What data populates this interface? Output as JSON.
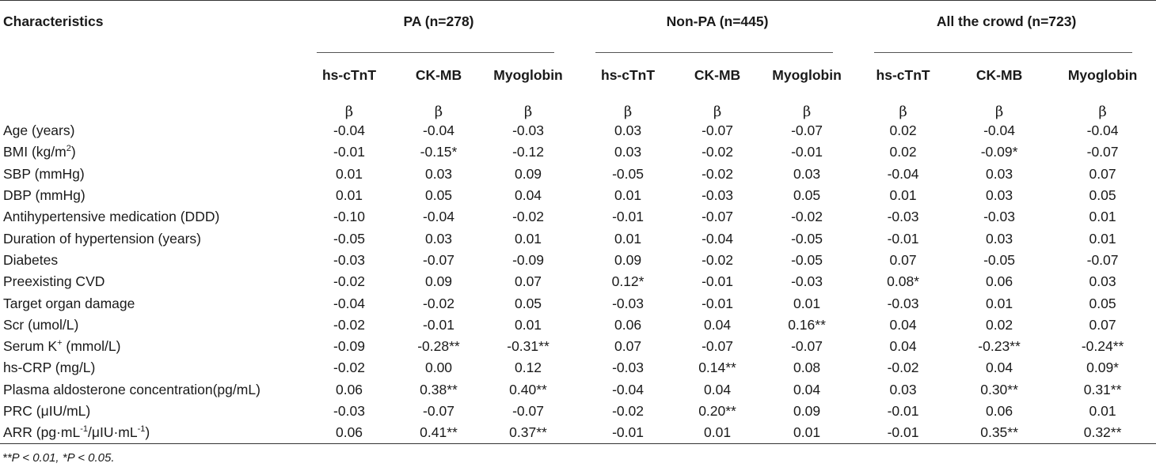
{
  "header": {
    "characteristics_label": "Characteristics",
    "groups": [
      "PA (n=278)",
      "Non-PA (n=445)",
      "All the crowd (n=723)"
    ],
    "subcolumns": [
      "hs-cTnT",
      "CK-MB",
      "Myoglobin",
      "hs-cTnT",
      "CK-MB",
      "Myoglobin",
      "hs-cTnT",
      "CK-MB",
      "Myoglobin"
    ],
    "beta_symbol": "β"
  },
  "rows": [
    {
      "label": "Age (years)",
      "values": [
        "-0.04",
        "-0.04",
        "-0.03",
        "0.03",
        "-0.07",
        "-0.07",
        "0.02",
        "-0.04",
        "-0.04"
      ]
    },
    {
      "label_pre": "BMI (kg/m",
      "label_sup": "2",
      "label_post": ")",
      "values": [
        "-0.01",
        "-0.15*",
        "-0.12",
        "0.03",
        "-0.02",
        "-0.01",
        "0.02",
        "-0.09*",
        "-0.07"
      ]
    },
    {
      "label": "SBP (mmHg)",
      "values": [
        "0.01",
        "0.03",
        "0.09",
        "-0.05",
        "-0.02",
        "0.03",
        "-0.04",
        "0.03",
        "0.07"
      ]
    },
    {
      "label": "DBP (mmHg)",
      "values": [
        "0.01",
        "0.05",
        "0.04",
        "0.01",
        "-0.03",
        "0.05",
        "0.01",
        "0.03",
        "0.05"
      ]
    },
    {
      "label": "Antihypertensive medication (DDD)",
      "values": [
        "-0.10",
        "-0.04",
        "-0.02",
        "-0.01",
        "-0.07",
        "-0.02",
        "-0.03",
        "-0.03",
        "0.01"
      ]
    },
    {
      "label": "Duration of hypertension (years)",
      "values": [
        "-0.05",
        "0.03",
        "0.01",
        "0.01",
        "-0.04",
        "-0.05",
        "-0.01",
        "0.03",
        "0.01"
      ]
    },
    {
      "label": "Diabetes",
      "values": [
        "-0.03",
        "-0.07",
        "-0.09",
        "0.09",
        "-0.02",
        "-0.05",
        "0.07",
        "-0.05",
        "-0.07"
      ]
    },
    {
      "label": "Preexisting CVD",
      "values": [
        "-0.02",
        "0.09",
        "0.07",
        "0.12*",
        "-0.01",
        "-0.03",
        "0.08*",
        "0.06",
        "0.03"
      ]
    },
    {
      "label": "Target organ damage",
      "values": [
        "-0.04",
        "-0.02",
        "0.05",
        "-0.03",
        "-0.01",
        "0.01",
        "-0.03",
        "0.01",
        "0.05"
      ]
    },
    {
      "label": "Scr (umol/L)",
      "values": [
        "-0.02",
        "-0.01",
        "0.01",
        "0.06",
        "0.04",
        "0.16**",
        "0.04",
        "0.02",
        "0.07"
      ]
    },
    {
      "label_pre": "Serum K",
      "label_sup": "+",
      "label_post": " (mmol/L)",
      "values": [
        "-0.09",
        "-0.28**",
        "-0.31**",
        "0.07",
        "-0.07",
        "-0.07",
        "0.04",
        "-0.23**",
        "-0.24**"
      ]
    },
    {
      "label": "hs-CRP (mg/L)",
      "values": [
        "-0.02",
        "0.00",
        "0.12",
        "-0.03",
        "0.14**",
        "0.08",
        "-0.02",
        "0.04",
        "0.09*"
      ]
    },
    {
      "label": "Plasma aldosterone concentration(pg/mL)",
      "values": [
        "0.06",
        "0.38**",
        "0.40**",
        "-0.04",
        "0.04",
        "0.04",
        "0.03",
        "0.30**",
        "0.31**"
      ]
    },
    {
      "label": "PRC (μIU/mL)",
      "values": [
        "-0.03",
        "-0.07",
        "-0.07",
        "-0.02",
        "0.20**",
        "0.09",
        "-0.01",
        "0.06",
        "0.01"
      ]
    },
    {
      "label_pre": "ARR (pg·mL",
      "label_sup": "-1",
      "label_mid": "/μIU·mL",
      "label_sup2": "-1",
      "label_post": ")",
      "values": [
        "0.06",
        "0.41**",
        "0.37**",
        "-0.01",
        "0.01",
        "0.01",
        "-0.01",
        "0.35**",
        "0.32**"
      ]
    }
  ],
  "footnote": "**P < 0.01, *P < 0.05."
}
